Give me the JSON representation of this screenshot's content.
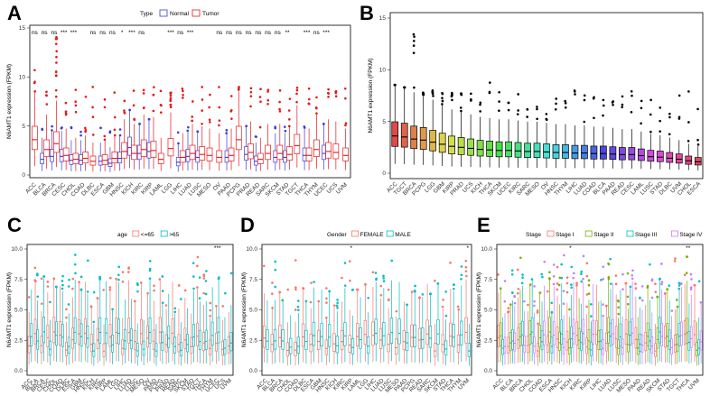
{
  "colors": {
    "normal": "#3b3bd6",
    "tumor": "#e41a1c",
    "age_le65": "#f8766d",
    "age_gt65": "#00bfc4",
    "female": "#f8766d",
    "male": "#00bfc4",
    "stage_i": "#f8766d",
    "stage_ii": "#7cae00",
    "stage_iii": "#00bfc4",
    "stage_iv": "#c77cff"
  },
  "chart_data": [
    {
      "id": "A",
      "panel": "A",
      "type": "box",
      "legend_title": "Type",
      "legend_items": [
        "Normal",
        "Tumor"
      ],
      "ylabel": "N6AMT1 expression (FPKM)",
      "ylim": [
        0,
        15
      ],
      "yticks": [
        0,
        5,
        10,
        15
      ],
      "categories": [
        "ACC",
        "BLCA",
        "BRCA",
        "CESC",
        "CHOL",
        "COAD",
        "DLBC",
        "ESCA",
        "GBM",
        "HNSC",
        "KICH",
        "KIRC",
        "KIRP",
        "LAML",
        "LGG",
        "LIHC",
        "LUAD",
        "LUSC",
        "MESO",
        "OV",
        "PAAD",
        "PCPG",
        "PRAD",
        "READ",
        "SARC",
        "SKCM",
        "STAD",
        "TGCT",
        "THCA",
        "THYM",
        "UCEC",
        "UCS",
        "UVM"
      ],
      "significance": [
        "ns",
        "ns",
        "ns",
        "***",
        "***",
        "",
        "ns",
        "ns",
        "ns",
        "*",
        "***",
        "ns",
        "",
        "",
        "***",
        "ns",
        "***",
        "",
        "",
        "ns",
        "ns",
        "ns",
        "ns",
        "ns",
        "ns",
        "ns",
        "**",
        "",
        "***",
        "ns",
        "***",
        "",
        ""
      ],
      "series": [
        {
          "name": "Normal",
          "medians": [
            null,
            1.6,
            1.9,
            1.9,
            1.5,
            1.5,
            null,
            1.4,
            1.2,
            1.7,
            2.8,
            2.2,
            2.4,
            null,
            null,
            1.3,
            1.9,
            1.8,
            null,
            null,
            1.8,
            null,
            2.1,
            1.4,
            null,
            1.8,
            1.8,
            null,
            2.0,
            null,
            2.2,
            null,
            null
          ]
        },
        {
          "name": "Tumor",
          "medians": [
            3.6,
            2.6,
            3.2,
            2.0,
            1.6,
            1.7,
            1.4,
            1.5,
            1.7,
            2.4,
            2.2,
            2.6,
            2.5,
            1.6,
            2.7,
            1.8,
            2.2,
            2.1,
            2.0,
            1.8,
            2.0,
            3.6,
            2.3,
            1.6,
            2.2,
            2.2,
            2.1,
            3.0,
            2.0,
            2.6,
            2.4,
            2.3,
            2.0
          ]
        }
      ]
    },
    {
      "id": "B",
      "panel": "B",
      "type": "box",
      "ylabel": "N6AMT1 expression (FPKM)",
      "ylim": [
        0,
        15
      ],
      "yticks": [
        0,
        5,
        10,
        15
      ],
      "categories": [
        "ACC",
        "TGCT",
        "BRCA",
        "PCPG",
        "LGG",
        "GBM",
        "KIRP",
        "PRAD",
        "UCS",
        "KICH",
        "THCA",
        "SKCM",
        "UCEC",
        "KIRC",
        "SARC",
        "MESO",
        "OV",
        "HNSC",
        "THYM",
        "LIHC",
        "LUAD",
        "COAD",
        "BLCA",
        "PAAD",
        "READ",
        "CESC",
        "LAML",
        "LUSC",
        "STAD",
        "DLBC",
        "UVM",
        "CHOL",
        "ESCA"
      ],
      "medians": [
        3.6,
        3.5,
        3.3,
        3.2,
        3.0,
        2.8,
        2.6,
        2.5,
        2.4,
        2.3,
        2.25,
        2.2,
        2.2,
        2.15,
        2.1,
        2.1,
        2.05,
        2.0,
        2.0,
        1.95,
        1.95,
        1.9,
        1.9,
        1.85,
        1.8,
        1.8,
        1.7,
        1.6,
        1.55,
        1.45,
        1.35,
        1.2,
        1.1
      ]
    },
    {
      "id": "C",
      "panel": "C",
      "type": "box",
      "legend_title": "age",
      "legend_items": [
        "<=65",
        ">65"
      ],
      "ylabel": "N6AMT1 expression (FPKM)",
      "ylim": [
        0,
        10
      ],
      "yticks": [
        "0.0",
        "2.5",
        "5.0",
        "7.5",
        "10.0"
      ],
      "categories": [
        "ACC",
        "BLCA",
        "BRCA",
        "CESC",
        "CHOL",
        "COAD",
        "DLBC",
        "ESCA",
        "GBM",
        "HNSC",
        "KICH",
        "KIRC",
        "KIRP",
        "LAML",
        "LGG",
        "LIHC",
        "LUAD",
        "LUSC",
        "MESO",
        "OV",
        "PAAD",
        "PCPG",
        "PRAD",
        "READ",
        "SARC",
        "SKCM",
        "STAD",
        "TGCT",
        "THCA",
        "THYM",
        "UCEC",
        "UCS",
        "UVM"
      ],
      "significance_label": "***",
      "significance_category": "UCEC"
    },
    {
      "id": "D",
      "panel": "D",
      "type": "box",
      "legend_title": "Gender",
      "legend_items": [
        "FEMALE",
        "MALE"
      ],
      "ylabel": "N6AMT1 expression (FPKM)",
      "ylim": [
        0,
        10
      ],
      "yticks": [
        "0.0",
        "2.5",
        "5.0",
        "7.5",
        "10.0"
      ],
      "categories": [
        "ACC",
        "BLCA",
        "BRCA",
        "CHOL",
        "COAD",
        "DLBC",
        "ESCA",
        "GBM",
        "HNSC",
        "KICH",
        "KIRC",
        "KIRP",
        "LAML",
        "LGG",
        "LIHC",
        "LUAD",
        "LUSC",
        "MESO",
        "PAAD",
        "PCPG",
        "READ",
        "SARC",
        "SKCM",
        "STAD",
        "THCA",
        "THYM",
        "UVM"
      ],
      "significance_marks": [
        "*",
        "*"
      ]
    },
    {
      "id": "E",
      "panel": "E",
      "type": "box",
      "legend_title": "Stage",
      "legend_items": [
        "Stage I",
        "Stage II",
        "Stage III",
        "Stage IV"
      ],
      "ylabel": "N6AMT1 expression (FPKM)",
      "ylim": [
        0,
        10
      ],
      "yticks": [
        "0.0",
        "2.5",
        "5.0",
        "7.5",
        "10.0"
      ],
      "categories": [
        "ACC",
        "BLCA",
        "BRCA",
        "CHOL",
        "COAD",
        "ESCA",
        "HNSC",
        "KICH",
        "KIRC",
        "KIRP",
        "LIHC",
        "LUAD",
        "LUSC",
        "MESO",
        "PAAD",
        "READ",
        "SKCM",
        "STAD",
        "TGCT",
        "THCA",
        "UVM"
      ],
      "significance_marks": [
        "*",
        "**"
      ]
    }
  ]
}
